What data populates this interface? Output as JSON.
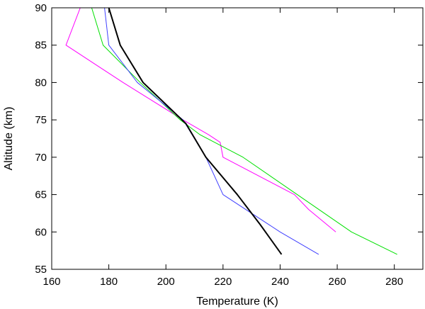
{
  "chart_data": {
    "type": "line",
    "title": "",
    "xlabel": "Temperature (K)",
    "ylabel": "Altitude (km)",
    "xlim": [
      160,
      290
    ],
    "ylim": [
      55,
      90
    ],
    "xticks": [
      160,
      180,
      200,
      220,
      240,
      260,
      280
    ],
    "yticks": [
      55,
      60,
      65,
      70,
      75,
      80,
      85,
      90
    ],
    "grid": false,
    "legend": "none",
    "series": [
      {
        "color": "#ff00ff",
        "stroke_width": 1,
        "points": [
          [
            259.5,
            60
          ],
          [
            250,
            63
          ],
          [
            245,
            65
          ],
          [
            220,
            70
          ],
          [
            219,
            72
          ],
          [
            215,
            73
          ],
          [
            206,
            75
          ],
          [
            185,
            80
          ],
          [
            165,
            85
          ],
          [
            170,
            90
          ]
        ]
      },
      {
        "color": "#00e000",
        "stroke_width": 1,
        "points": [
          [
            281,
            57
          ],
          [
            265,
            60
          ],
          [
            246,
            65
          ],
          [
            227,
            70
          ],
          [
            212,
            73
          ],
          [
            205,
            75
          ],
          [
            191,
            80
          ],
          [
            178,
            85
          ],
          [
            174,
            90
          ]
        ]
      },
      {
        "color": "#4040ff",
        "stroke_width": 1,
        "points": [
          [
            253.5,
            57
          ],
          [
            240,
            60
          ],
          [
            220,
            65
          ],
          [
            214,
            70
          ],
          [
            206,
            75
          ],
          [
            190,
            80
          ],
          [
            180,
            85
          ],
          [
            178.5,
            90
          ]
        ]
      },
      {
        "color": "#000000",
        "stroke_width": 2,
        "points": [
          [
            240.5,
            57
          ],
          [
            233,
            61
          ],
          [
            225,
            65
          ],
          [
            214,
            70
          ],
          [
            207,
            74.5
          ],
          [
            192,
            80
          ],
          [
            184,
            85
          ],
          [
            180,
            90
          ]
        ]
      }
    ]
  }
}
